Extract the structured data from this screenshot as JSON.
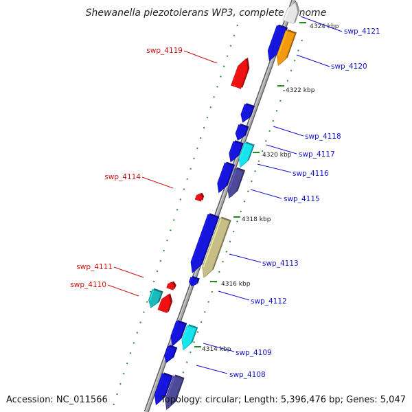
{
  "map": {
    "title": "Shewanella piezotolerans WP3, complete genome",
    "accession": "Accession: NC_011566",
    "summary": "Topology: circular; Length: 5,396,476 bp; Genes: 5,047"
  },
  "ruler_labels": [
    "4324 kbp",
    "4322 kbp",
    "4320 kbp",
    "4318 kbp",
    "4316 kbp",
    "4314 kbp"
  ],
  "gene_labels": {
    "forward": [
      "swp_4121",
      "swp_4120",
      "swp_4118",
      "swp_4117",
      "swp_4116",
      "swp_4115",
      "swp_4113",
      "swp_4112",
      "swp_4109",
      "swp_4108"
    ],
    "reverse": [
      "swp_4119",
      "swp_4114",
      "swp_4111",
      "swp_4110"
    ]
  },
  "colors": {
    "backbone": "#8f8f8f",
    "forward_label": "#1010cc",
    "reverse_label": "#cc1010",
    "gene_blue": "#1515dd",
    "gene_orange": "#f39a12",
    "gene_cyan": "#19e3ec",
    "gene_slate": "#4e4a9a",
    "gene_khaki": "#c7bd86",
    "gene_teal": "#1bb9b9",
    "gene_red": "#ee1111",
    "gene_white": "#e6e6e6",
    "tick_green": "#1e8a1e"
  }
}
